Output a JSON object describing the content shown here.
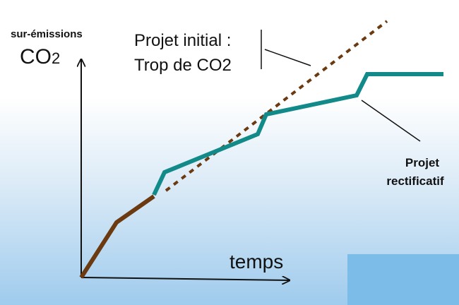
{
  "y_axis_label": {
    "line1": "sur-émissions",
    "line2_main": "CO",
    "line2_index": "2"
  },
  "x_axis_label": "temps",
  "initial_project": [
    "Projet initial :",
    "Trop de CO2"
  ],
  "revised_project": [
    "Projet",
    "rectificatif"
  ]
}
